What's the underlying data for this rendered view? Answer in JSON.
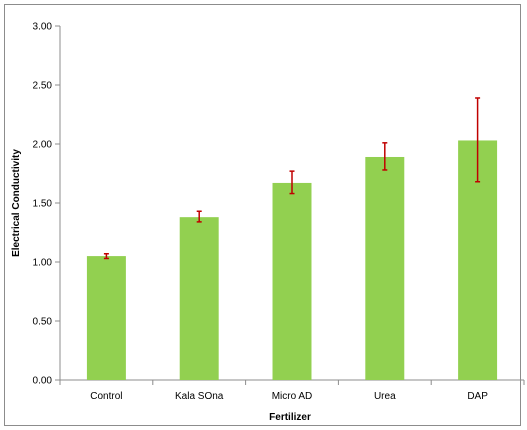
{
  "chart_data": {
    "type": "bar",
    "title": "",
    "xlabel": "Fertilizer",
    "ylabel": "Electrical Conductivity",
    "categories": [
      "Control",
      "Kala SOna",
      "Micro AD",
      "Urea",
      "DAP"
    ],
    "series": [
      {
        "values": [
          1.05,
          1.38,
          1.67,
          1.89,
          2.03
        ],
        "error_low": [
          1.03,
          1.34,
          1.58,
          1.78,
          1.68
        ],
        "error_high": [
          1.07,
          1.43,
          1.77,
          2.01,
          2.39
        ]
      }
    ],
    "ylim": [
      0,
      3
    ],
    "yticks": [
      "0.00",
      "0.50",
      "1.00",
      "1.50",
      "2.00",
      "2.50",
      "3.00"
    ],
    "ytick_values": [
      0,
      0.5,
      1,
      1.5,
      2,
      2.5,
      3
    ],
    "grid": false,
    "legend": "none",
    "colors": {
      "bar": "#92d050",
      "error_bar": "#c00000",
      "axis": "#8c8c8c"
    }
  }
}
